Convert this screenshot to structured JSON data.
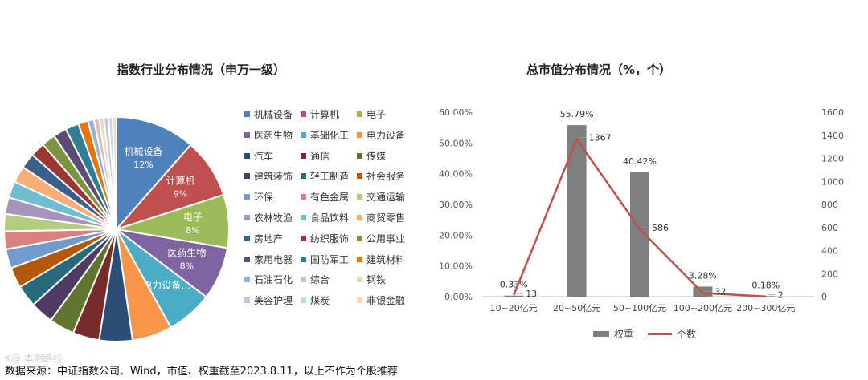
{
  "footnote": "数据来源：中证指数公司、Wind，市值、权重截至2023.8.11，以上不作为个股推荐",
  "watermark": "K@ 本期路线",
  "chart_data": [
    {
      "type": "pie",
      "title": "指数行业分布情况（申万一级）",
      "categories": [
        "机械设备",
        "计算机",
        "电子",
        "医药生物",
        "基础化工",
        "电力设备",
        "汽车",
        "通信",
        "传媒",
        "建筑装饰",
        "轻工制造",
        "社会服务",
        "环保",
        "有色金属",
        "交通运输",
        "农林牧渔",
        "食品饮料",
        "商贸零售",
        "房地产",
        "纺织服饰",
        "公用事业",
        "家用电器",
        "国防军工",
        "建筑材料",
        "石油石化",
        "综合",
        "钢铁",
        "美容护理",
        "煤炭",
        "非银金融"
      ],
      "values": [
        12,
        9,
        8,
        8,
        7,
        6,
        5,
        4,
        3.8,
        3.5,
        3.3,
        3.1,
        2.9,
        2.7,
        2.6,
        2.5,
        2.5,
        2.5,
        2.3,
        2.2,
        2.1,
        2.0,
        2.0,
        1.5,
        0.9,
        0.8,
        0.7,
        0.7,
        0.6,
        0.6
      ],
      "colors": [
        "#4f81bd",
        "#c0504d",
        "#9bbb59",
        "#8064a2",
        "#4bacc6",
        "#f79646",
        "#2c4d75",
        "#772c2a",
        "#5f7530",
        "#4d3b62",
        "#276a7c",
        "#b65708",
        "#729aca",
        "#d9817f",
        "#b3cc82",
        "#a495ba",
        "#6fbdd1",
        "#f9ad77",
        "#3a5f8a",
        "#9b3633",
        "#7a943f",
        "#5e4c78",
        "#2f7e93",
        "#e8750c",
        "#95b3d7",
        "#e6b9b8",
        "#d7e4bd",
        "#ccc0da",
        "#b7dee8",
        "#fcd5b4"
      ],
      "slice_labels": [
        {
          "name": "机械设备",
          "pct": "12%"
        },
        {
          "name": "计算机",
          "pct": "9%"
        },
        {
          "name": "电子",
          "pct": "8%"
        },
        {
          "name": "医药生物",
          "pct": "8%"
        },
        {
          "name": "电力设备…",
          "pct": ""
        }
      ]
    },
    {
      "type": "bar",
      "title": "总市值分布情况（%，个）",
      "categories": [
        "10~20亿元",
        "20~50亿元",
        "50~100亿元",
        "100~200亿元",
        "200~300亿元"
      ],
      "series": [
        {
          "name": "权重",
          "type": "bar",
          "axis": "left",
          "color": "#7f7f7f",
          "values": [
            0.33,
            55.79,
            40.42,
            3.28,
            0.18
          ],
          "labels": [
            "0.33%",
            "55.79%",
            "40.42%",
            "3.28%",
            "0.18%"
          ]
        },
        {
          "name": "个数",
          "type": "line",
          "axis": "right",
          "color": "#c0504d",
          "values": [
            13,
            1367,
            586,
            32,
            2
          ],
          "labels": [
            "13",
            "1367",
            "586",
            "32",
            "2"
          ]
        }
      ],
      "y_left": {
        "min": 0,
        "max": 60,
        "ticks": [
          "0.00%",
          "10.00%",
          "20.00%",
          "30.00%",
          "40.00%",
          "50.00%",
          "60.00%"
        ]
      },
      "y_right": {
        "min": 0,
        "max": 1600,
        "ticks": [
          "0",
          "200",
          "400",
          "600",
          "800",
          "1000",
          "1200",
          "1400",
          "1600"
        ]
      },
      "legend": "bottom"
    }
  ]
}
